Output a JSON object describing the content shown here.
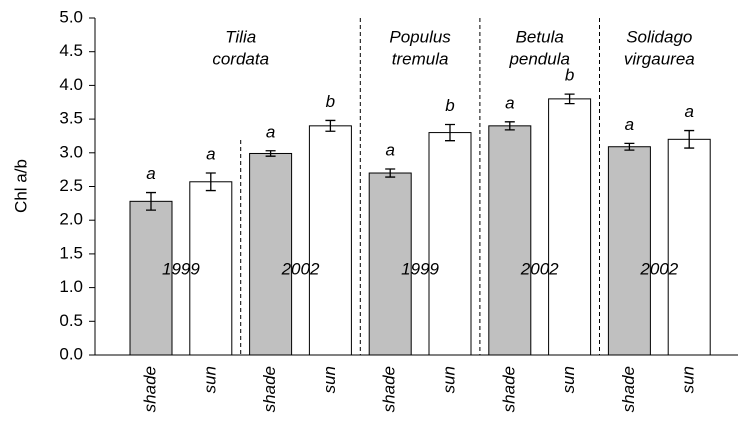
{
  "chart_data": {
    "type": "bar",
    "ylabel": "Chl a/b",
    "categories": [
      "shade",
      "sun",
      "shade",
      "sun",
      "shade",
      "sun",
      "shade",
      "sun",
      "shade",
      "sun"
    ],
    "values": [
      2.28,
      2.57,
      2.99,
      3.4,
      2.7,
      3.3,
      3.4,
      3.8,
      3.09,
      3.2
    ],
    "errors": [
      0.13,
      0.13,
      0.04,
      0.08,
      0.06,
      0.12,
      0.06,
      0.07,
      0.05,
      0.13
    ],
    "colors": [
      "#c0c0c0",
      "#ffffff",
      "#c0c0c0",
      "#ffffff",
      "#c0c0c0",
      "#ffffff",
      "#c0c0c0",
      "#ffffff",
      "#c0c0c0",
      "#ffffff"
    ],
    "letters": [
      "a",
      "a",
      "a",
      "b",
      "a",
      "b",
      "a",
      "b",
      "a",
      "a"
    ],
    "years": [
      "1999",
      "2002",
      "1999",
      "2002",
      "2002"
    ],
    "groups": [
      {
        "lines": [
          "Tilia",
          "cordata"
        ],
        "size": 4
      },
      {
        "lines": [
          "Populus",
          "tremula"
        ],
        "size": 2
      },
      {
        "lines": [
          "Betula",
          "pendula"
        ],
        "size": 2
      },
      {
        "lines": [
          "Solidago",
          "virgaurea"
        ],
        "size": 2
      }
    ],
    "ylim": [
      0,
      5
    ],
    "yticks": [
      {
        "value": 0,
        "label": "0.0"
      },
      {
        "value": 0.5,
        "label": "0.5"
      },
      {
        "value": 1,
        "label": "1.0"
      },
      {
        "value": 1.5,
        "label": "1.5"
      },
      {
        "value": 2,
        "label": "2.0"
      },
      {
        "value": 2.5,
        "label": "2.5"
      },
      {
        "value": 3,
        "label": "3.0"
      },
      {
        "value": 3.5,
        "label": "3.5"
      },
      {
        "value": 4,
        "label": "4.0"
      },
      {
        "value": 4.5,
        "label": "4.5"
      },
      {
        "value": 5,
        "label": "5.0"
      }
    ]
  }
}
